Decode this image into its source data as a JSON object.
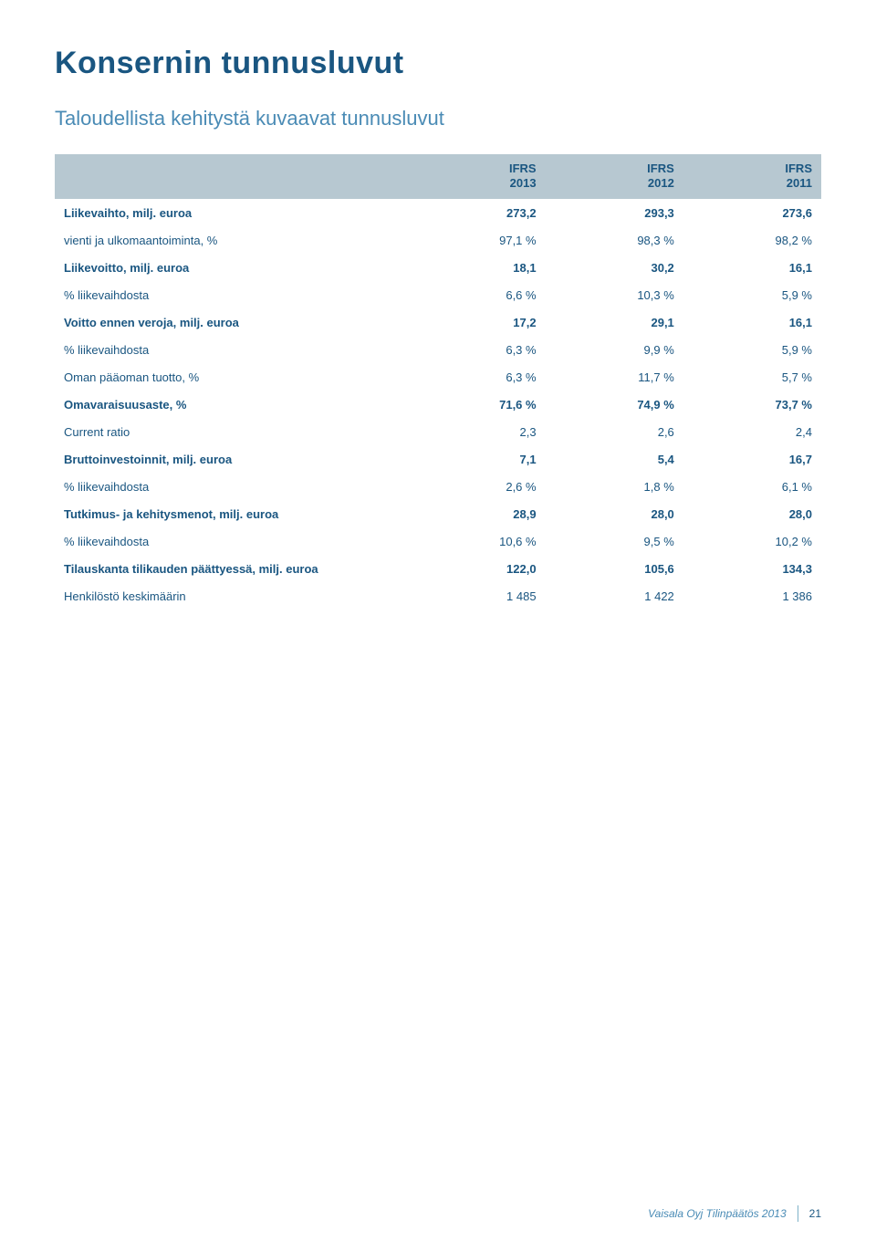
{
  "title": "Konsernin tunnusluvut",
  "subtitle": "Taloudellista kehitystä kuvaavat tunnusluvut",
  "columns": [
    {
      "top": "IFRS",
      "bot": "2013"
    },
    {
      "top": "IFRS",
      "bot": "2012"
    },
    {
      "top": "IFRS",
      "bot": "2011"
    }
  ],
  "rows": [
    {
      "label": "Liikevaihto, milj. euroa",
      "c1": "273,2",
      "c2": "293,3",
      "c3": "273,6",
      "bold": true
    },
    {
      "label": "vienti ja ulkomaantoiminta, %",
      "c1": "97,1 %",
      "c2": "98,3 %",
      "c3": "98,2 %",
      "bold": false
    },
    {
      "label": "Liikevoitto, milj. euroa",
      "c1": "18,1",
      "c2": "30,2",
      "c3": "16,1",
      "bold": true
    },
    {
      "label": "% liikevaihdosta",
      "c1": "6,6 %",
      "c2": "10,3 %",
      "c3": "5,9 %",
      "bold": false
    },
    {
      "label": "Voitto ennen veroja, milj. euroa",
      "c1": "17,2",
      "c2": "29,1",
      "c3": "16,1",
      "bold": true
    },
    {
      "label": "% liikevaihdosta",
      "c1": "6,3 %",
      "c2": "9,9 %",
      "c3": "5,9 %",
      "bold": false
    },
    {
      "label": "Oman pääoman tuotto, %",
      "c1": "6,3 %",
      "c2": "11,7 %",
      "c3": "5,7 %",
      "bold": false
    },
    {
      "label": "Omavaraisuusaste, %",
      "c1": "71,6 %",
      "c2": "74,9 %",
      "c3": "73,7 %",
      "bold": true
    },
    {
      "label": "Current ratio",
      "c1": "2,3",
      "c2": "2,6",
      "c3": "2,4",
      "bold": false
    },
    {
      "label": "Bruttoinvestoinnit, milj. euroa",
      "c1": "7,1",
      "c2": "5,4",
      "c3": "16,7",
      "bold": true
    },
    {
      "label": "% liikevaihdosta",
      "c1": "2,6 %",
      "c2": "1,8 %",
      "c3": "6,1 %",
      "bold": false
    },
    {
      "label": "Tutkimus- ja kehitysmenot, milj. euroa",
      "c1": "28,9",
      "c2": "28,0",
      "c3": "28,0",
      "bold": true
    },
    {
      "label": "% liikevaihdosta",
      "c1": "10,6 %",
      "c2": "9,5 %",
      "c3": "10,2 %",
      "bold": false
    },
    {
      "label": "Tilauskanta tilikauden päättyessä, milj. euroa",
      "c1": "122,0",
      "c2": "105,6",
      "c3": "134,3",
      "bold": true
    },
    {
      "label": "Henkilöstö keskimäärin",
      "c1": "1 485",
      "c2": "1 422",
      "c3": "1 386",
      "bold": false
    }
  ],
  "footer": {
    "text": "Vaisala Oyj Tilinpäätös 2013",
    "page": "21"
  }
}
